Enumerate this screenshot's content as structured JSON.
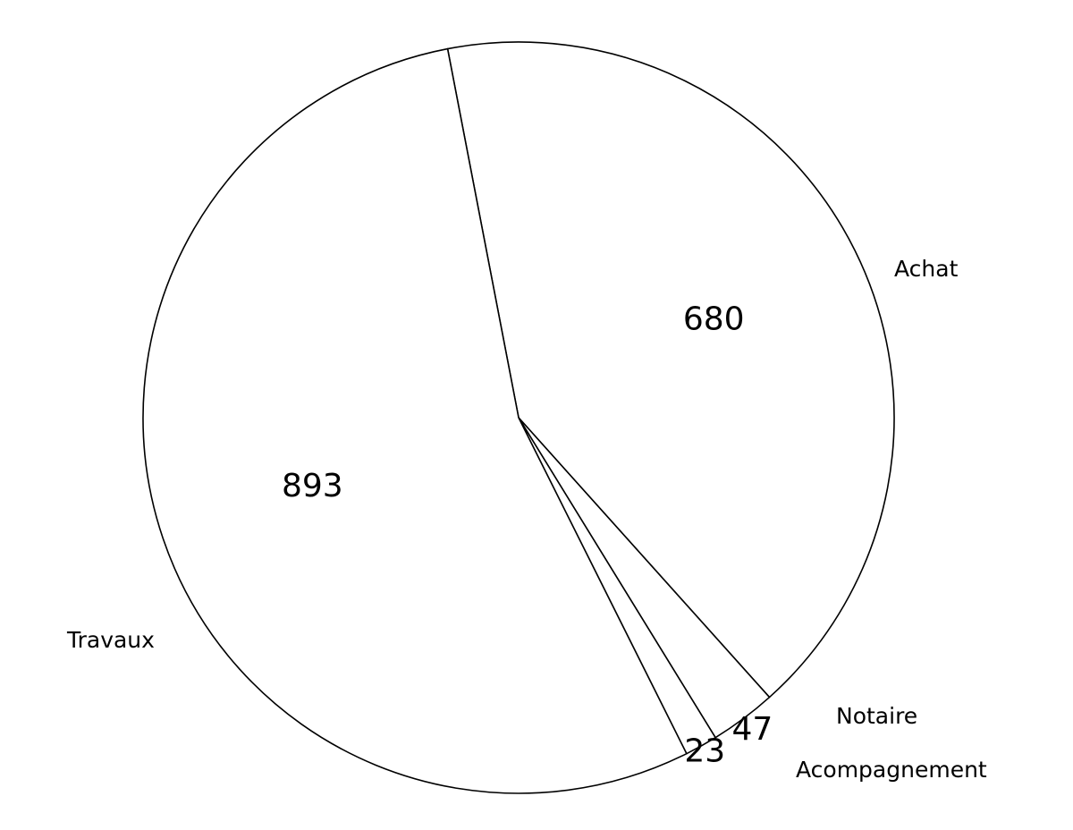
{
  "chart_data": {
    "type": "pie",
    "title": "",
    "start_angle_deg": -10.9,
    "direction": "clockwise",
    "legend": "none",
    "slices": [
      {
        "name": "Achat",
        "value": 680,
        "value_text": "680"
      },
      {
        "name": "Notaire",
        "value": 47,
        "value_text": "47"
      },
      {
        "name": "Acompagnement",
        "value": 23,
        "value_text": "23"
      },
      {
        "name": "Travaux",
        "value": 893,
        "value_text": "893"
      }
    ],
    "colors": {
      "fill": "#ffffff",
      "stroke": "#000000",
      "text": "#000000"
    }
  }
}
